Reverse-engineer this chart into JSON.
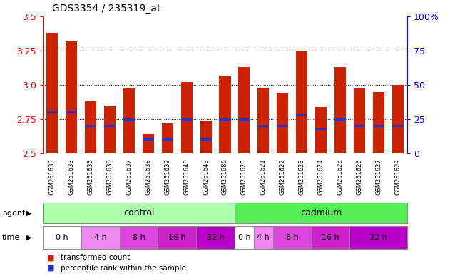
{
  "title": "GDS3354 / 235319_at",
  "samples": [
    "GSM251630",
    "GSM251633",
    "GSM251635",
    "GSM251636",
    "GSM251637",
    "GSM251638",
    "GSM251639",
    "GSM251640",
    "GSM251649",
    "GSM251686",
    "GSM251620",
    "GSM251621",
    "GSM251622",
    "GSM251623",
    "GSM251624",
    "GSM251625",
    "GSM251626",
    "GSM251627",
    "GSM251629"
  ],
  "red_values": [
    3.38,
    3.32,
    2.88,
    2.85,
    2.98,
    2.64,
    2.72,
    3.02,
    2.74,
    3.07,
    3.13,
    2.98,
    2.94,
    3.25,
    2.84,
    3.13,
    2.98,
    2.95,
    3.0
  ],
  "blue_pct": [
    30,
    30,
    20,
    20,
    25,
    10,
    10,
    25,
    10,
    25,
    25,
    20,
    20,
    28,
    18,
    25,
    20,
    20,
    20
  ],
  "ymin": 2.5,
  "ymax": 3.5,
  "y2min": 0,
  "y2max": 100,
  "yticks_left": [
    2.5,
    2.75,
    3.0,
    3.25,
    3.5
  ],
  "yticks_right": [
    0,
    25,
    50,
    75,
    100
  ],
  "bar_color": "#cc2200",
  "blue_color": "#2233cc",
  "bar_width": 0.6,
  "n_control": 10,
  "n_cadmium": 9,
  "ctrl_times": [
    [
      0,
      2,
      "0 h",
      "#ffffff"
    ],
    [
      2,
      4,
      "4 h",
      "#ee88ee"
    ],
    [
      4,
      6,
      "8 h",
      "#dd44dd"
    ],
    [
      6,
      8,
      "16 h",
      "#cc22cc"
    ],
    [
      8,
      10,
      "32 h",
      "#bb00cc"
    ]
  ],
  "cad_times": [
    [
      10,
      11,
      "0 h",
      "#ffffff"
    ],
    [
      11,
      12,
      "4 h",
      "#ee88ee"
    ],
    [
      12,
      14,
      "8 h",
      "#dd44dd"
    ],
    [
      14,
      16,
      "16 h",
      "#cc22cc"
    ],
    [
      16,
      19,
      "32 h",
      "#bb00cc"
    ]
  ],
  "control_color": "#aaffaa",
  "cadmium_color": "#55ee55"
}
